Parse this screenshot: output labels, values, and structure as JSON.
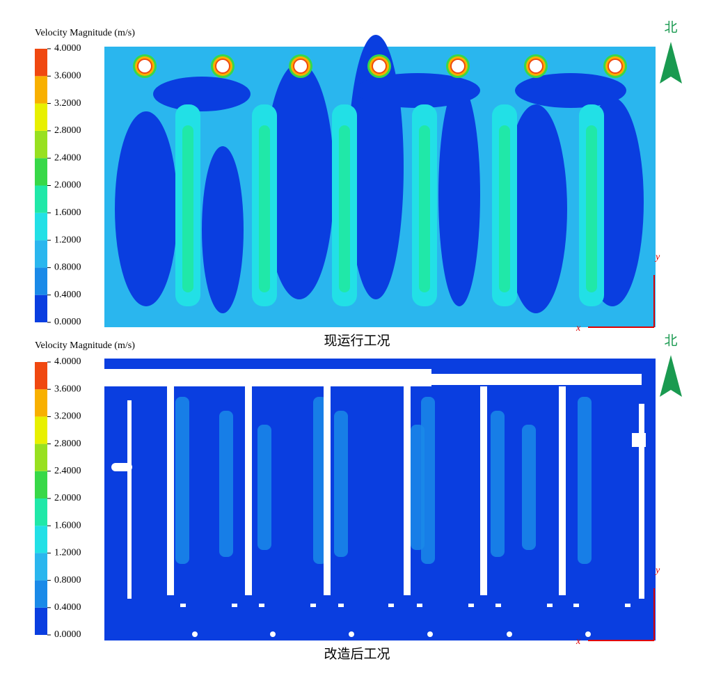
{
  "panels": [
    {
      "colorbar": {
        "title": "Velocity Magnitude (m/s)",
        "range": [
          0,
          4
        ],
        "ticks": [
          {
            "value": 0,
            "label": "0.0000"
          },
          {
            "value": 0.4,
            "label": "0.4000"
          },
          {
            "value": 0.8,
            "label": "0.8000"
          },
          {
            "value": 1.2,
            "label": "1.2000"
          },
          {
            "value": 1.6,
            "label": "1.6000"
          },
          {
            "value": 2,
            "label": "2.0000"
          },
          {
            "value": 2.4,
            "label": "2.4000"
          },
          {
            "value": 2.8,
            "label": "2.8000"
          },
          {
            "value": 3.2,
            "label": "3.2000"
          },
          {
            "value": 3.6,
            "label": "3.6000"
          },
          {
            "value": 4,
            "label": "4.0000"
          }
        ],
        "colors": [
          "#0a3ee0",
          "#1a8ae8",
          "#2ab6ee",
          "#22e0e6",
          "#20e8a8",
          "#38d848",
          "#98e020",
          "#e8f000",
          "#f8b000",
          "#f04810"
        ]
      },
      "caption": "现运行工况",
      "north": "北",
      "x_axis": "x",
      "y_axis": "y"
    },
    {
      "colorbar": {
        "title": "Velocity Magnitude (m/s)",
        "range": [
          0,
          4
        ],
        "ticks": [
          {
            "value": 0,
            "label": "0.0000"
          },
          {
            "value": 0.4,
            "label": "0.4000"
          },
          {
            "value": 0.8,
            "label": "0.8000"
          },
          {
            "value": 1.2,
            "label": "1.2000"
          },
          {
            "value": 1.6,
            "label": "1.6000"
          },
          {
            "value": 2,
            "label": "2.0000"
          },
          {
            "value": 2.4,
            "label": "2.4000"
          },
          {
            "value": 2.8,
            "label": "2.8000"
          },
          {
            "value": 3.2,
            "label": "3.2000"
          },
          {
            "value": 3.6,
            "label": "3.6000"
          },
          {
            "value": 4,
            "label": "4.0000"
          }
        ],
        "colors": [
          "#0a3ee0",
          "#1a8ae8",
          "#2ab6ee",
          "#22e0e6",
          "#20e8a8",
          "#38d848",
          "#98e020",
          "#e8f000",
          "#f8b000",
          "#f04810"
        ]
      },
      "caption": "改造后工况",
      "north": "北",
      "x_axis": "x",
      "y_axis": "y"
    }
  ]
}
